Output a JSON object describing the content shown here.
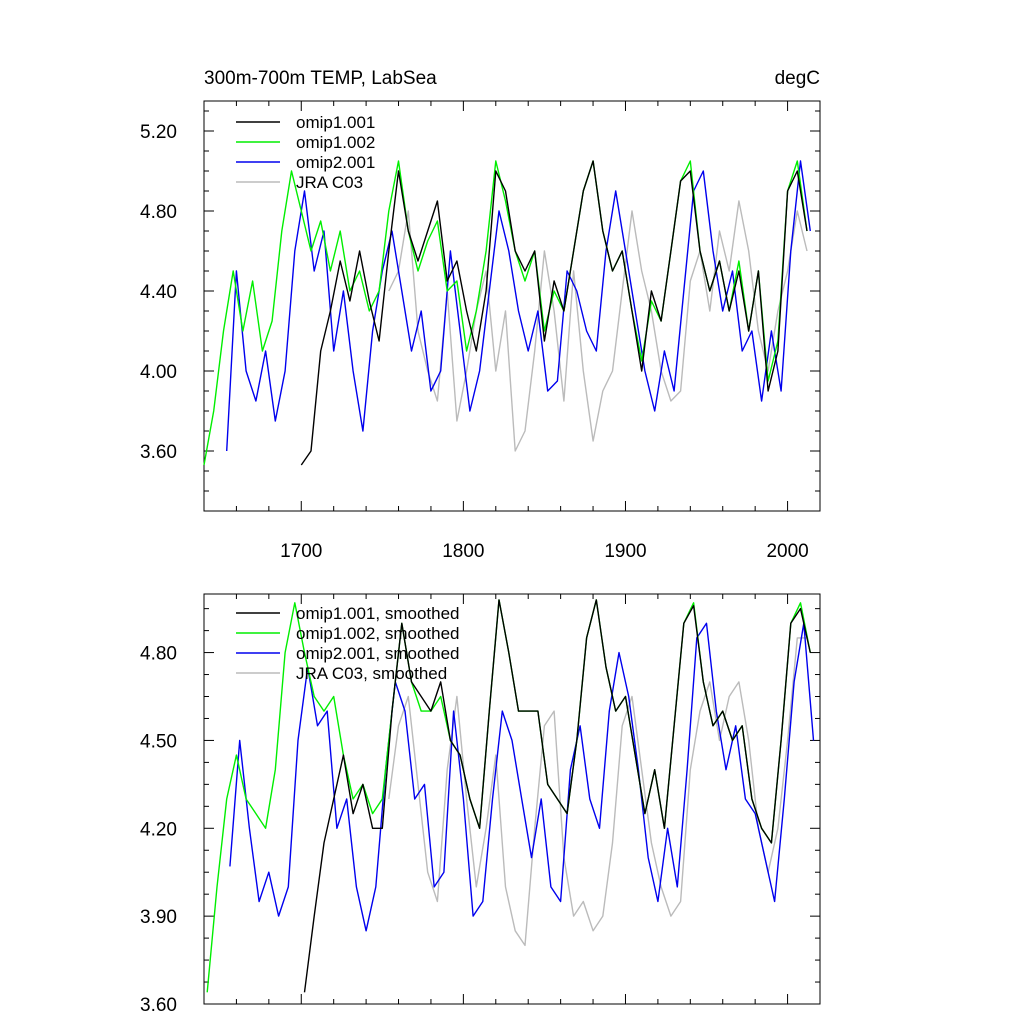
{
  "chart_data": [
    {
      "type": "line",
      "title": "300m-700m TEMP, LabSea",
      "units": "degC",
      "xlim": [
        1640,
        2020
      ],
      "ylim": [
        3.3,
        5.35
      ],
      "xticks": [
        1700,
        1800,
        1900,
        2000
      ],
      "xtick_labels": [
        "1700",
        "1800",
        "1900",
        "2000"
      ],
      "yticks": [
        3.6,
        4.0,
        4.4,
        4.8,
        5.2
      ],
      "ytick_labels": [
        "3.60",
        "4.00",
        "4.40",
        "4.80",
        "5.20"
      ],
      "legend": [
        "omip1.001",
        "omip1.002",
        "omip2.001",
        "JRA C03"
      ],
      "series": [
        {
          "name": "omip1.001",
          "color": "#000000",
          "x": [
            1700,
            1706,
            1712,
            1718,
            1724,
            1730,
            1736,
            1742,
            1748,
            1754,
            1760,
            1766,
            1772,
            1778,
            1784,
            1790,
            1796,
            1802,
            1808,
            1814,
            1820,
            1826,
            1832,
            1838,
            1844,
            1850,
            1856,
            1862,
            1868,
            1874,
            1880,
            1886,
            1892,
            1898,
            1904,
            1910,
            1916,
            1922,
            1928,
            1934,
            1940,
            1946,
            1952,
            1958,
            1964,
            1970,
            1976,
            1982,
            1988,
            1994,
            2000,
            2006,
            2012
          ],
          "values": [
            3.53,
            3.6,
            4.1,
            4.3,
            4.55,
            4.35,
            4.6,
            4.35,
            4.15,
            4.6,
            5.0,
            4.7,
            4.55,
            4.7,
            4.85,
            4.45,
            4.55,
            4.3,
            4.1,
            4.4,
            5.0,
            4.9,
            4.6,
            4.5,
            4.6,
            4.15,
            4.45,
            4.3,
            4.6,
            4.9,
            5.05,
            4.7,
            4.5,
            4.6,
            4.3,
            4.0,
            4.4,
            4.25,
            4.6,
            4.95,
            5.0,
            4.6,
            4.4,
            4.55,
            4.3,
            4.5,
            4.2,
            4.5,
            3.9,
            4.1,
            4.9,
            5.0,
            4.7
          ]
        },
        {
          "name": "omip1.002",
          "color": "#00ee00",
          "x": [
            1640,
            1646,
            1652,
            1658,
            1664,
            1670,
            1676,
            1682,
            1688,
            1694,
            1700,
            1706,
            1712,
            1718,
            1724,
            1730,
            1736,
            1742,
            1748,
            1754,
            1760,
            1766,
            1772,
            1778,
            1784,
            1790,
            1796,
            1802,
            1808,
            1814,
            1820,
            1826,
            1832,
            1838,
            1844,
            1850,
            1856,
            1862,
            1868,
            1874,
            1880,
            1886,
            1892,
            1898,
            1904,
            1910,
            1916,
            1922,
            1928,
            1934,
            1940,
            1946,
            1952,
            1958,
            1964,
            1970,
            1976,
            1982,
            1988,
            1994,
            2000,
            2006,
            2012
          ],
          "values": [
            3.53,
            3.8,
            4.2,
            4.5,
            4.2,
            4.45,
            4.1,
            4.25,
            4.7,
            5.0,
            4.8,
            4.6,
            4.75,
            4.5,
            4.7,
            4.4,
            4.5,
            4.3,
            4.4,
            4.8,
            5.05,
            4.7,
            4.5,
            4.65,
            4.75,
            4.4,
            4.45,
            4.1,
            4.3,
            4.6,
            5.05,
            4.85,
            4.6,
            4.45,
            4.6,
            4.2,
            4.4,
            4.3,
            4.6,
            4.9,
            5.05,
            4.7,
            4.5,
            4.6,
            4.3,
            4.05,
            4.35,
            4.25,
            4.6,
            4.95,
            5.05,
            4.6,
            4.4,
            4.55,
            4.3,
            4.55,
            4.2,
            4.5,
            3.95,
            4.15,
            4.9,
            5.05,
            4.7
          ]
        },
        {
          "name": "omip2.001",
          "color": "#0000ee",
          "x": [
            1654,
            1660,
            1666,
            1672,
            1678,
            1684,
            1690,
            1696,
            1702,
            1708,
            1714,
            1720,
            1726,
            1732,
            1738,
            1744,
            1750,
            1756,
            1762,
            1768,
            1774,
            1780,
            1786,
            1792,
            1798,
            1804,
            1810,
            1816,
            1822,
            1828,
            1834,
            1840,
            1846,
            1852,
            1858,
            1864,
            1870,
            1876,
            1882,
            1888,
            1894,
            1900,
            1906,
            1912,
            1918,
            1924,
            1930,
            1936,
            1942,
            1948,
            1954,
            1960,
            1966,
            1972,
            1978,
            1984,
            1990,
            1996,
            2002,
            2008,
            2014
          ],
          "values": [
            3.6,
            4.5,
            4.0,
            3.85,
            4.1,
            3.75,
            4.0,
            4.6,
            4.9,
            4.5,
            4.7,
            4.1,
            4.4,
            4.0,
            3.7,
            4.2,
            4.5,
            4.7,
            4.4,
            4.1,
            4.3,
            3.9,
            4.0,
            4.6,
            4.2,
            3.8,
            4.0,
            4.4,
            4.8,
            4.6,
            4.3,
            4.1,
            4.3,
            3.9,
            3.95,
            4.5,
            4.4,
            4.2,
            4.1,
            4.6,
            4.9,
            4.6,
            4.3,
            4.0,
            3.8,
            4.1,
            3.9,
            4.4,
            4.9,
            5.0,
            4.6,
            4.3,
            4.5,
            4.1,
            4.2,
            3.85,
            4.2,
            3.9,
            4.6,
            5.05,
            4.7
          ]
        },
        {
          "name": "JRA C03",
          "color": "#bbbbbb",
          "x": [
            1754,
            1760,
            1766,
            1772,
            1778,
            1784,
            1790,
            1796,
            1802,
            1808,
            1814,
            1820,
            1826,
            1832,
            1838,
            1844,
            1850,
            1856,
            1862,
            1868,
            1874,
            1880,
            1886,
            1892,
            1898,
            1904,
            1910,
            1916,
            1922,
            1928,
            1934,
            1940,
            1946,
            1952,
            1958,
            1964,
            1970,
            1976,
            1982,
            1988,
            1994,
            2000,
            2006,
            2012
          ],
          "values": [
            4.4,
            4.5,
            4.8,
            4.2,
            4.0,
            3.85,
            4.4,
            3.75,
            4.0,
            4.3,
            4.5,
            4.0,
            4.3,
            3.6,
            3.7,
            4.1,
            4.6,
            4.3,
            3.85,
            4.5,
            4.0,
            3.65,
            3.9,
            4.0,
            4.4,
            4.8,
            4.5,
            4.3,
            4.0,
            3.85,
            3.9,
            4.45,
            4.6,
            4.3,
            4.7,
            4.5,
            4.85,
            4.6,
            4.2,
            4.0,
            4.3,
            4.5,
            4.8,
            4.6
          ]
        }
      ]
    },
    {
      "type": "line",
      "title": "",
      "xlim": [
        1640,
        2020
      ],
      "ylim": [
        3.6,
        5.0
      ],
      "xticks": [
        1700,
        1800,
        1900,
        2000
      ],
      "yticks": [
        3.6,
        3.9,
        4.2,
        4.5,
        4.8
      ],
      "ytick_labels": [
        "3.60",
        "3.90",
        "4.20",
        "4.50",
        "4.80"
      ],
      "legend": [
        "omip1.001, smoothed",
        "omip1.002, smoothed",
        "omip2.001, smoothed",
        "JRA C03, smoothed"
      ],
      "series": [
        {
          "name": "omip1.001, smoothed",
          "color": "#000000",
          "x": [
            1702,
            1708,
            1714,
            1720,
            1726,
            1732,
            1738,
            1744,
            1750,
            1756,
            1762,
            1768,
            1774,
            1780,
            1786,
            1792,
            1798,
            1804,
            1810,
            1816,
            1822,
            1828,
            1834,
            1840,
            1846,
            1852,
            1858,
            1864,
            1870,
            1876,
            1882,
            1888,
            1894,
            1900,
            1906,
            1912,
            1918,
            1924,
            1930,
            1936,
            1942,
            1948,
            1954,
            1960,
            1966,
            1972,
            1978,
            1984,
            1990,
            1996,
            2002,
            2008,
            2014
          ],
          "values": [
            3.64,
            3.9,
            4.15,
            4.3,
            4.45,
            4.25,
            4.35,
            4.2,
            4.2,
            4.6,
            4.9,
            4.7,
            4.65,
            4.6,
            4.7,
            4.5,
            4.45,
            4.3,
            4.2,
            4.6,
            4.98,
            4.8,
            4.6,
            4.6,
            4.6,
            4.35,
            4.3,
            4.25,
            4.5,
            4.85,
            4.98,
            4.75,
            4.6,
            4.65,
            4.45,
            4.25,
            4.4,
            4.2,
            4.55,
            4.9,
            4.96,
            4.7,
            4.55,
            4.6,
            4.5,
            4.55,
            4.3,
            4.2,
            4.15,
            4.5,
            4.9,
            4.95,
            4.8
          ]
        },
        {
          "name": "omip1.002, smoothed",
          "color": "#00ee00",
          "x": [
            1642,
            1648,
            1654,
            1660,
            1666,
            1672,
            1678,
            1684,
            1690,
            1696,
            1702,
            1708,
            1714,
            1720,
            1726,
            1732,
            1738,
            1744,
            1750,
            1756,
            1762,
            1768,
            1774,
            1780,
            1786,
            1792,
            1798,
            1804,
            1810,
            1816,
            1822,
            1828,
            1834,
            1840,
            1846,
            1852,
            1858,
            1864,
            1870,
            1876,
            1882,
            1888,
            1894,
            1900,
            1906,
            1912,
            1918,
            1924,
            1930,
            1936,
            1942,
            1948,
            1954,
            1960,
            1966,
            1972,
            1978,
            1984,
            1990,
            1996,
            2002,
            2008,
            2014
          ],
          "values": [
            3.64,
            4.0,
            4.3,
            4.45,
            4.3,
            4.25,
            4.2,
            4.4,
            4.8,
            4.97,
            4.8,
            4.65,
            4.6,
            4.65,
            4.45,
            4.3,
            4.35,
            4.25,
            4.3,
            4.6,
            4.9,
            4.7,
            4.6,
            4.6,
            4.65,
            4.5,
            4.45,
            4.3,
            4.2,
            4.6,
            4.98,
            4.8,
            4.6,
            4.6,
            4.6,
            4.35,
            4.3,
            4.25,
            4.5,
            4.85,
            4.98,
            4.75,
            4.6,
            4.65,
            4.45,
            4.25,
            4.4,
            4.2,
            4.55,
            4.9,
            4.97,
            4.7,
            4.55,
            4.6,
            4.5,
            4.55,
            4.3,
            4.2,
            4.15,
            4.5,
            4.9,
            4.97,
            4.8
          ]
        },
        {
          "name": "omip2.001, smoothed",
          "color": "#0000ee",
          "x": [
            1656,
            1662,
            1668,
            1674,
            1680,
            1686,
            1692,
            1698,
            1704,
            1710,
            1716,
            1722,
            1728,
            1734,
            1740,
            1746,
            1752,
            1758,
            1764,
            1770,
            1776,
            1782,
            1788,
            1794,
            1800,
            1806,
            1812,
            1818,
            1824,
            1830,
            1836,
            1842,
            1848,
            1854,
            1860,
            1866,
            1872,
            1878,
            1884,
            1890,
            1896,
            1902,
            1908,
            1914,
            1920,
            1926,
            1932,
            1938,
            1944,
            1950,
            1956,
            1962,
            1968,
            1974,
            1980,
            1986,
            1992,
            1998,
            2004,
            2010,
            2016
          ],
          "values": [
            4.07,
            4.5,
            4.2,
            3.95,
            4.05,
            3.9,
            4.0,
            4.5,
            4.75,
            4.55,
            4.6,
            4.2,
            4.3,
            4.0,
            3.85,
            4.0,
            4.4,
            4.7,
            4.6,
            4.3,
            4.35,
            4.0,
            4.05,
            4.6,
            4.3,
            3.9,
            3.95,
            4.3,
            4.6,
            4.5,
            4.3,
            4.1,
            4.3,
            4.0,
            3.95,
            4.4,
            4.55,
            4.3,
            4.2,
            4.6,
            4.8,
            4.65,
            4.4,
            4.1,
            3.95,
            4.2,
            4.0,
            4.4,
            4.85,
            4.9,
            4.6,
            4.4,
            4.55,
            4.3,
            4.25,
            4.1,
            3.95,
            4.3,
            4.7,
            4.9,
            4.5
          ]
        },
        {
          "name": "JRA C03, smoothed",
          "color": "#bbbbbb",
          "x": [
            1754,
            1760,
            1766,
            1772,
            1778,
            1784,
            1790,
            1796,
            1802,
            1808,
            1814,
            1820,
            1826,
            1832,
            1838,
            1844,
            1850,
            1856,
            1862,
            1868,
            1874,
            1880,
            1886,
            1892,
            1898,
            1904,
            1910,
            1916,
            1922,
            1928,
            1934,
            1940,
            1946,
            1952,
            1958,
            1964,
            1970,
            1976,
            1982,
            1988,
            1994,
            2000,
            2006,
            2012
          ],
          "values": [
            4.3,
            4.55,
            4.65,
            4.35,
            4.05,
            3.95,
            4.4,
            4.65,
            4.3,
            4.0,
            4.2,
            4.45,
            4.0,
            3.85,
            3.8,
            4.2,
            4.55,
            4.6,
            4.1,
            3.9,
            3.95,
            3.85,
            3.9,
            4.15,
            4.55,
            4.65,
            4.4,
            4.15,
            4.0,
            3.9,
            3.95,
            4.4,
            4.6,
            4.7,
            4.5,
            4.65,
            4.7,
            4.5,
            4.2,
            4.05,
            4.2,
            4.5,
            4.85,
            4.85
          ]
        }
      ]
    }
  ]
}
